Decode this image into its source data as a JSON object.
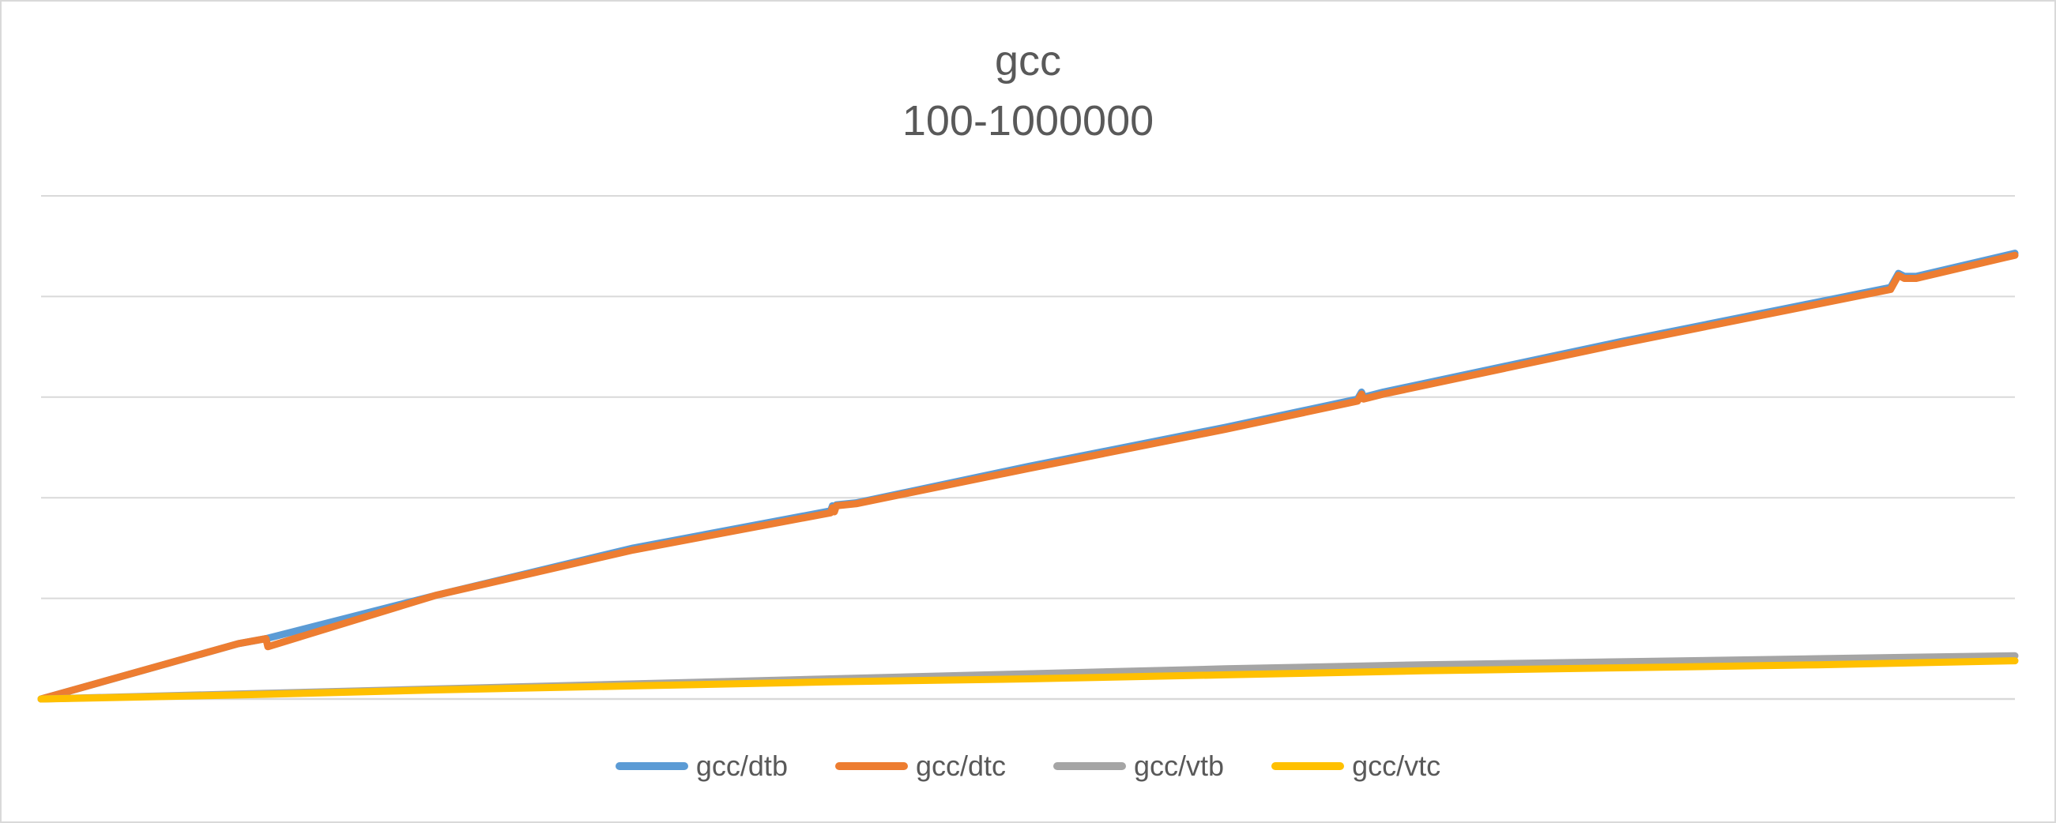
{
  "chart_data": {
    "type": "line",
    "title": "gcc",
    "subtitle": "100-1000000",
    "xlabel": "",
    "ylabel": "",
    "x_range": [
      100,
      1000000
    ],
    "ylim": [
      0,
      5
    ],
    "grid": true,
    "legend_position": "bottom",
    "series": [
      {
        "name": "gcc/dtb",
        "color": "#5b9bd5",
        "x": [
          100,
          100000,
          114000,
          200000,
          300000,
          400000,
          401000,
          402000,
          403000,
          413000,
          500000,
          600000,
          667000,
          669000,
          670000,
          680000,
          800000,
          937000,
          941000,
          944000,
          950000,
          1000000
        ],
        "y": [
          0,
          0.55,
          0.6,
          1.03,
          1.5,
          1.87,
          1.92,
          1.88,
          1.93,
          1.95,
          2.31,
          2.7,
          2.98,
          3.05,
          3.0,
          3.05,
          3.55,
          4.09,
          4.23,
          4.2,
          4.2,
          4.43
        ]
      },
      {
        "name": "gcc/dtc",
        "color": "#ed7d31",
        "x": [
          100,
          100000,
          114000,
          115000,
          200000,
          300000,
          400000,
          401000,
          402000,
          403000,
          413000,
          500000,
          600000,
          667000,
          669000,
          670000,
          680000,
          800000,
          937000,
          941000,
          944000,
          950000,
          1000000
        ],
        "y": [
          0,
          0.55,
          0.6,
          0.52,
          1.03,
          1.48,
          1.85,
          1.9,
          1.86,
          1.92,
          1.94,
          2.29,
          2.68,
          2.96,
          3.03,
          2.98,
          3.03,
          3.53,
          4.07,
          4.21,
          4.18,
          4.18,
          4.41
        ]
      },
      {
        "name": "gcc/vtb",
        "color": "#a5a5a5",
        "x": [
          100,
          100000,
          200000,
          300000,
          400000,
          500000,
          600000,
          700000,
          800000,
          900000,
          1000000
        ],
        "y": [
          0,
          0.05,
          0.1,
          0.15,
          0.2,
          0.25,
          0.3,
          0.34,
          0.37,
          0.4,
          0.43
        ]
      },
      {
        "name": "gcc/vtc",
        "color": "#ffc000",
        "x": [
          100,
          100000,
          200000,
          300000,
          400000,
          500000,
          600000,
          700000,
          800000,
          900000,
          1000000
        ],
        "y": [
          0,
          0.04,
          0.09,
          0.13,
          0.17,
          0.2,
          0.24,
          0.28,
          0.31,
          0.34,
          0.38
        ]
      }
    ]
  }
}
